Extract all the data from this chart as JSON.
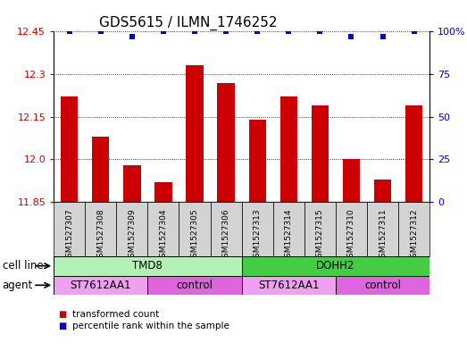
{
  "title": "GDS5615 / ILMN_1746252",
  "samples": [
    "GSM1527307",
    "GSM1527308",
    "GSM1527309",
    "GSM1527304",
    "GSM1527305",
    "GSM1527306",
    "GSM1527313",
    "GSM1527314",
    "GSM1527315",
    "GSM1527310",
    "GSM1527311",
    "GSM1527312"
  ],
  "transformed_counts": [
    12.22,
    12.08,
    11.98,
    11.92,
    12.33,
    12.27,
    12.14,
    12.22,
    12.19,
    12.0,
    11.93,
    12.19
  ],
  "percentile_y": [
    100,
    100,
    97,
    100,
    100,
    100,
    100,
    100,
    100,
    97,
    97,
    100
  ],
  "ylim_left": [
    11.85,
    12.45
  ],
  "ylim_right": [
    0,
    100
  ],
  "yticks_left": [
    11.85,
    12.0,
    12.15,
    12.3,
    12.45
  ],
  "yticks_right": [
    0,
    25,
    50,
    75,
    100
  ],
  "bar_color": "#cc0000",
  "dot_color": "#0000cc",
  "bar_bottom": 11.85,
  "sample_bg_color": "#d3d3d3",
  "plot_bg_color": "#ffffff",
  "cell_line_groups": [
    {
      "label": "TMD8",
      "start": 0,
      "end": 6,
      "color": "#b3f0b3"
    },
    {
      "label": "DOHH2",
      "start": 6,
      "end": 12,
      "color": "#44cc44"
    }
  ],
  "agent_groups": [
    {
      "label": "ST7612AA1",
      "start": 0,
      "end": 3,
      "color": "#f0a0f0"
    },
    {
      "label": "control",
      "start": 3,
      "end": 6,
      "color": "#dd66dd"
    },
    {
      "label": "ST7612AA1",
      "start": 6,
      "end": 9,
      "color": "#f0a0f0"
    },
    {
      "label": "control",
      "start": 9,
      "end": 12,
      "color": "#dd66dd"
    }
  ],
  "legend_items": [
    {
      "label": "transformed count",
      "color": "#cc0000"
    },
    {
      "label": "percentile rank within the sample",
      "color": "#0000cc"
    }
  ],
  "bg_color": "#ffffff",
  "title_fontsize": 11,
  "tick_fontsize": 8,
  "label_fontsize": 8.5,
  "row_label_fontsize": 8.5
}
